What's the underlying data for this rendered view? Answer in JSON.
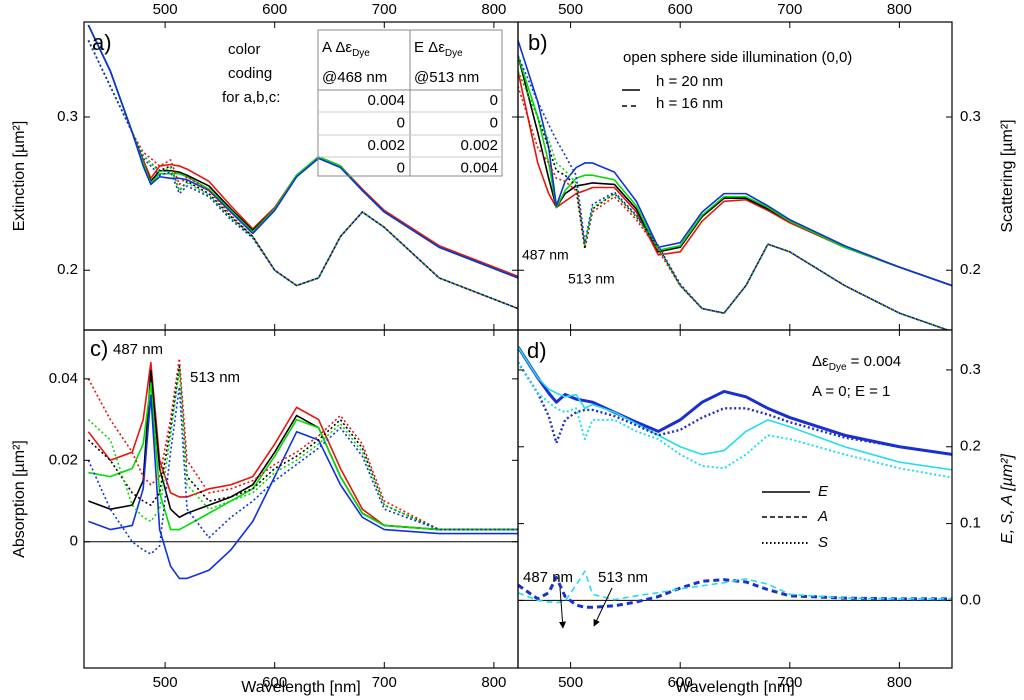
{
  "chart_data": [
    {
      "type": "line",
      "panel_label": "a)",
      "ylabel": "Extinction [µm²]",
      "xlim": [
        426,
        822
      ],
      "xticks": [
        500,
        600,
        700,
        800
      ],
      "ylim": [
        0.161,
        0.362
      ],
      "yticks": [
        0.2,
        0.3
      ],
      "x": [
        430,
        450,
        470,
        480,
        487,
        495,
        505,
        513,
        520,
        540,
        560,
        580,
        600,
        620,
        640,
        660,
        680,
        700,
        750,
        822
      ],
      "series": [
        {
          "color": "#e8140c",
          "dash": "solid",
          "values": [
            0.36,
            0.33,
            0.29,
            0.272,
            0.26,
            0.268,
            0.269,
            0.268,
            0.266,
            0.258,
            0.242,
            0.227,
            0.241,
            0.262,
            0.274,
            0.268,
            0.253,
            0.239,
            0.216,
            0.196
          ]
        },
        {
          "color": "#000000",
          "dash": "solid",
          "values": [
            0.36,
            0.33,
            0.29,
            0.27,
            0.258,
            0.265,
            0.265,
            0.264,
            0.262,
            0.255,
            0.24,
            0.226,
            0.24,
            0.262,
            0.274,
            0.268,
            0.252,
            0.238,
            0.215,
            0.195
          ]
        },
        {
          "color": "#00dd00",
          "dash": "solid",
          "values": [
            0.36,
            0.33,
            0.29,
            0.27,
            0.257,
            0.263,
            0.263,
            0.263,
            0.261,
            0.253,
            0.239,
            0.225,
            0.24,
            0.262,
            0.274,
            0.268,
            0.252,
            0.238,
            0.215,
            0.195
          ]
        },
        {
          "color": "#1030e0",
          "dash": "solid",
          "values": [
            0.36,
            0.33,
            0.29,
            0.268,
            0.256,
            0.261,
            0.26,
            0.26,
            0.259,
            0.252,
            0.238,
            0.224,
            0.239,
            0.261,
            0.273,
            0.267,
            0.252,
            0.238,
            0.215,
            0.195
          ]
        },
        {
          "color": "#e8140c",
          "dash": "dotted",
          "values": [
            0.35,
            0.32,
            0.29,
            0.277,
            0.273,
            0.268,
            0.272,
            0.256,
            0.261,
            0.252,
            0.236,
            0.222,
            0.2,
            0.19,
            0.195,
            0.222,
            0.238,
            0.228,
            0.195,
            0.175
          ]
        },
        {
          "color": "#000000",
          "dash": "dotted",
          "values": [
            0.35,
            0.32,
            0.29,
            0.275,
            0.27,
            0.265,
            0.268,
            0.252,
            0.258,
            0.25,
            0.235,
            0.222,
            0.2,
            0.19,
            0.195,
            0.222,
            0.238,
            0.228,
            0.195,
            0.175
          ]
        },
        {
          "color": "#00dd00",
          "dash": "dotted",
          "values": [
            0.35,
            0.32,
            0.29,
            0.275,
            0.27,
            0.264,
            0.267,
            0.252,
            0.257,
            0.249,
            0.234,
            0.222,
            0.2,
            0.19,
            0.195,
            0.222,
            0.238,
            0.228,
            0.195,
            0.175
          ]
        },
        {
          "color": "#1030e0",
          "dash": "dotted",
          "values": [
            0.35,
            0.32,
            0.29,
            0.273,
            0.268,
            0.262,
            0.264,
            0.25,
            0.255,
            0.248,
            0.233,
            0.221,
            0.2,
            0.19,
            0.195,
            0.222,
            0.238,
            0.228,
            0.195,
            0.175
          ]
        }
      ],
      "color_note": [
        "color",
        "coding",
        "for a,b,c:"
      ],
      "table": {
        "header": [
          [
            {
              "text": "A Δε",
              "sub": "Dye"
            },
            {
              "text": "E Δε",
              "sub": "Dye"
            }
          ],
          [
            "@468 nm",
            "@513 nm"
          ]
        ],
        "rows": [
          {
            "color": "#e8140c",
            "cells": [
              "0.004",
              "0"
            ]
          },
          {
            "color": "#000000",
            "cells": [
              "0",
              "0"
            ]
          },
          {
            "color": "#00dd00",
            "cells": [
              "0.002",
              "0.002"
            ]
          },
          {
            "color": "#1030e0",
            "cells": [
              "0",
              "0.004"
            ]
          }
        ]
      }
    },
    {
      "type": "line",
      "panel_label": "b)",
      "ylabel": "Scattering  [µm²]",
      "xlim": [
        452,
        848
      ],
      "xticks": [
        500,
        600,
        700,
        800
      ],
      "ylim": [
        0.161,
        0.362
      ],
      "yticks": [
        0.2,
        0.3
      ],
      "x": [
        452,
        470,
        480,
        487,
        495,
        505,
        513,
        520,
        540,
        560,
        580,
        600,
        620,
        640,
        660,
        680,
        700,
        750,
        800,
        848
      ],
      "series": [
        {
          "color": "#e8140c",
          "dash": "solid",
          "values": [
            0.33,
            0.27,
            0.25,
            0.241,
            0.245,
            0.25,
            0.252,
            0.254,
            0.254,
            0.238,
            0.21,
            0.212,
            0.232,
            0.245,
            0.246,
            0.239,
            0.231,
            0.215,
            0.202,
            0.19
          ]
        },
        {
          "color": "#000000",
          "dash": "solid",
          "values": [
            0.34,
            0.29,
            0.26,
            0.241,
            0.25,
            0.255,
            0.256,
            0.257,
            0.256,
            0.24,
            0.212,
            0.215,
            0.235,
            0.247,
            0.247,
            0.24,
            0.232,
            0.215,
            0.202,
            0.19
          ]
        },
        {
          "color": "#00dd00",
          "dash": "solid",
          "values": [
            0.34,
            0.3,
            0.27,
            0.241,
            0.252,
            0.26,
            0.262,
            0.262,
            0.259,
            0.242,
            0.213,
            0.216,
            0.236,
            0.248,
            0.248,
            0.241,
            0.232,
            0.215,
            0.202,
            0.19
          ]
        },
        {
          "color": "#1030e0",
          "dash": "solid",
          "values": [
            0.35,
            0.31,
            0.28,
            0.242,
            0.258,
            0.267,
            0.27,
            0.27,
            0.264,
            0.245,
            0.215,
            0.218,
            0.238,
            0.25,
            0.25,
            0.242,
            0.233,
            0.216,
            0.202,
            0.19
          ]
        },
        {
          "color": "#e8140c",
          "dash": "dotted",
          "values": [
            0.32,
            0.28,
            0.27,
            0.26,
            0.258,
            0.252,
            0.214,
            0.238,
            0.248,
            0.233,
            0.213,
            0.19,
            0.175,
            0.172,
            0.19,
            0.217,
            0.212,
            0.19,
            0.172,
            0.16
          ]
        },
        {
          "color": "#000000",
          "dash": "dotted",
          "values": [
            0.33,
            0.3,
            0.28,
            0.265,
            0.262,
            0.255,
            0.215,
            0.24,
            0.25,
            0.235,
            0.215,
            0.19,
            0.175,
            0.172,
            0.19,
            0.217,
            0.212,
            0.19,
            0.172,
            0.16
          ]
        },
        {
          "color": "#00dd00",
          "dash": "dotted",
          "values": [
            0.33,
            0.3,
            0.285,
            0.27,
            0.265,
            0.257,
            0.216,
            0.241,
            0.25,
            0.235,
            0.215,
            0.19,
            0.175,
            0.172,
            0.19,
            0.217,
            0.212,
            0.19,
            0.172,
            0.16
          ]
        },
        {
          "color": "#1030e0",
          "dash": "dotted",
          "values": [
            0.34,
            0.31,
            0.295,
            0.285,
            0.275,
            0.262,
            0.218,
            0.243,
            0.251,
            0.236,
            0.216,
            0.191,
            0.175,
            0.172,
            0.19,
            0.217,
            0.212,
            0.19,
            0.172,
            0.16
          ]
        }
      ],
      "legend_title": "open sphere side illumination (0,0)",
      "legend": [
        {
          "label": "h = 20 nm",
          "dash": "solid"
        },
        {
          "label": "h = 16 nm",
          "dash": "dashed"
        }
      ],
      "annotations": [
        "487 nm",
        "513 nm"
      ]
    },
    {
      "type": "line",
      "panel_label": "c)",
      "ylabel": "Absorption  [µm²]",
      "xlabel": "Wavelength [nm]",
      "zero_line": true,
      "xlim": [
        426,
        822
      ],
      "xticks": [
        500,
        600,
        700,
        800
      ],
      "ylim": [
        -0.031,
        0.052
      ],
      "yticks": [
        0,
        0.02,
        0.04
      ],
      "x": [
        430,
        450,
        470,
        480,
        487,
        495,
        505,
        513,
        520,
        540,
        560,
        580,
        600,
        620,
        640,
        660,
        680,
        700,
        750,
        822
      ],
      "series": [
        {
          "color": "#e8140c",
          "dash": "solid",
          "values": [
            0.027,
            0.02,
            0.022,
            0.03,
            0.044,
            0.02,
            0.012,
            0.011,
            0.011,
            0.013,
            0.014,
            0.016,
            0.024,
            0.033,
            0.03,
            0.018,
            0.008,
            0.004,
            0.003,
            0.003
          ]
        },
        {
          "color": "#000000",
          "dash": "solid",
          "values": [
            0.01,
            0.008,
            0.009,
            0.015,
            0.042,
            0.018,
            0.008,
            0.006,
            0.007,
            0.009,
            0.011,
            0.014,
            0.022,
            0.031,
            0.028,
            0.016,
            0.007,
            0.004,
            0.003,
            0.003
          ]
        },
        {
          "color": "#00dd00",
          "dash": "solid",
          "values": [
            0.017,
            0.016,
            0.018,
            0.024,
            0.039,
            0.012,
            0.003,
            0.003,
            0.004,
            0.007,
            0.01,
            0.013,
            0.021,
            0.03,
            0.028,
            0.016,
            0.007,
            0.004,
            0.003,
            0.003
          ]
        },
        {
          "color": "#1030e0",
          "dash": "solid",
          "values": [
            0.005,
            0.003,
            0.004,
            0.013,
            0.036,
            0.003,
            -0.006,
            -0.009,
            -0.009,
            -0.007,
            -0.002,
            0.005,
            0.016,
            0.027,
            0.025,
            0.014,
            0.006,
            0.003,
            0.002,
            0.002
          ]
        },
        {
          "color": "#e8140c",
          "dash": "dotted",
          "values": [
            0.04,
            0.03,
            0.022,
            0.016,
            0.014,
            0.016,
            0.03,
            0.045,
            0.02,
            0.012,
            0.013,
            0.015,
            0.019,
            0.022,
            0.026,
            0.031,
            0.024,
            0.01,
            0.003,
            0.003
          ]
        },
        {
          "color": "#000000",
          "dash": "dotted",
          "values": [
            0.025,
            0.02,
            0.012,
            0.01,
            0.009,
            0.012,
            0.028,
            0.043,
            0.016,
            0.01,
            0.011,
            0.013,
            0.018,
            0.021,
            0.025,
            0.03,
            0.023,
            0.009,
            0.003,
            0.003
          ]
        },
        {
          "color": "#00dd00",
          "dash": "dotted",
          "values": [
            0.03,
            0.025,
            0.009,
            0.006,
            0.005,
            0.008,
            0.026,
            0.042,
            0.014,
            0.008,
            0.01,
            0.012,
            0.017,
            0.02,
            0.024,
            0.029,
            0.022,
            0.009,
            0.003,
            0.003
          ]
        },
        {
          "color": "#1030e0",
          "dash": "dotted",
          "values": [
            0.02,
            0.008,
            0.0,
            -0.002,
            -0.003,
            -0.001,
            0.022,
            0.038,
            0.008,
            0.001,
            0.006,
            0.01,
            0.015,
            0.019,
            0.023,
            0.028,
            0.021,
            0.008,
            0.003,
            0.003
          ]
        }
      ],
      "annotations": [
        "487 nm",
        "513 nm"
      ]
    },
    {
      "type": "line",
      "panel_label": "d)",
      "ylabel": "E, S, A  [µm²]",
      "xlabel": "Wavelength [nm]",
      "zero_line": true,
      "xlim": [
        452,
        848
      ],
      "xticks": [
        500,
        600,
        700,
        800
      ],
      "ylim": [
        -0.088,
        0.352
      ],
      "yticks": [
        {
          "value": 0,
          "label": "0.0"
        },
        0.1,
        0.2,
        0.3
      ],
      "x": [
        452,
        470,
        480,
        487,
        495,
        505,
        513,
        520,
        540,
        560,
        580,
        600,
        620,
        640,
        660,
        680,
        700,
        750,
        800,
        848
      ],
      "series": [
        {
          "color": "#1a2fd0",
          "dash": "solid",
          "width": 3,
          "values": [
            0.33,
            0.29,
            0.27,
            0.258,
            0.268,
            0.262,
            0.26,
            0.258,
            0.245,
            0.232,
            0.22,
            0.235,
            0.258,
            0.272,
            0.265,
            0.25,
            0.238,
            0.215,
            0.2,
            0.19
          ]
        },
        {
          "color": "#22ddf0",
          "dash": "solid",
          "width": 1.6,
          "values": [
            0.33,
            0.29,
            0.275,
            0.27,
            0.265,
            0.268,
            0.25,
            0.255,
            0.245,
            0.23,
            0.215,
            0.2,
            0.19,
            0.195,
            0.22,
            0.235,
            0.226,
            0.2,
            0.18,
            0.17
          ]
        },
        {
          "color": "#1a2fd0",
          "dash": "dashed",
          "width": 3,
          "values": [
            0.02,
            0.002,
            0.01,
            0.03,
            0.005,
            -0.006,
            -0.009,
            -0.009,
            -0.007,
            -0.002,
            0.005,
            0.016,
            0.025,
            0.027,
            0.024,
            0.014,
            0.006,
            0.003,
            0.002,
            0.002
          ]
        },
        {
          "color": "#22ddf0",
          "dash": "dashed",
          "width": 1.6,
          "values": [
            0.01,
            0.0,
            -0.002,
            -0.003,
            -0.001,
            0.02,
            0.038,
            0.008,
            0.001,
            0.006,
            0.01,
            0.015,
            0.019,
            0.023,
            0.028,
            0.021,
            0.008,
            0.003,
            0.002,
            0.002
          ]
        },
        {
          "color": "#1a2fd0",
          "dash": "dotted",
          "width": 2.4,
          "values": [
            0.31,
            0.27,
            0.24,
            0.205,
            0.235,
            0.245,
            0.248,
            0.248,
            0.24,
            0.228,
            0.215,
            0.222,
            0.238,
            0.25,
            0.25,
            0.242,
            0.232,
            0.212,
            0.2,
            0.19
          ]
        },
        {
          "color": "#22ddf0",
          "dash": "dotted",
          "width": 2,
          "values": [
            0.31,
            0.27,
            0.258,
            0.25,
            0.245,
            0.25,
            0.21,
            0.235,
            0.235,
            0.22,
            0.21,
            0.19,
            0.175,
            0.172,
            0.19,
            0.215,
            0.21,
            0.19,
            0.172,
            0.16
          ]
        }
      ],
      "note": [
        {
          "text": "Δε",
          "sub": "Dye",
          "rest": " = 0.004"
        },
        "A = 0;  E = 1"
      ],
      "legend": [
        {
          "label": "E",
          "dash": "solid"
        },
        {
          "label": "A",
          "dash": "dashed"
        },
        {
          "label": "S",
          "dash": "dotted"
        }
      ],
      "annotations": [
        "487 nm",
        "513 nm"
      ]
    }
  ]
}
